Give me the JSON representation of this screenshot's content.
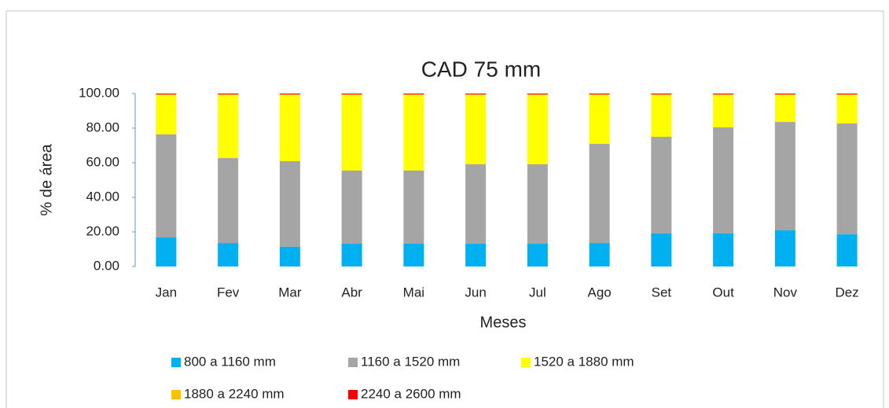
{
  "chart_data": {
    "type": "stacked_bar",
    "title": "CAD 75 mm",
    "x_label": "Meses",
    "y_label": "% de área",
    "categories": [
      "Jan",
      "Fev",
      "Mar",
      "Abr",
      "Mai",
      "Jun",
      "Jul",
      "Ago",
      "Set",
      "Out",
      "Nov",
      "Dez"
    ],
    "series": [
      {
        "name": "800 a 1160 mm",
        "color": "#00b0f0",
        "values": [
          16.8,
          13.6,
          11.4,
          13.2,
          13.2,
          13.2,
          13.2,
          13.6,
          19.1,
          19.1,
          20.9,
          18.6
        ]
      },
      {
        "name": "1160 a 1520 mm",
        "color": "#a5a5a5",
        "values": [
          59.6,
          49.1,
          49.5,
          42.3,
          42.3,
          45.9,
          45.9,
          57.3,
          55.9,
          61.4,
          62.7,
          64.1
        ]
      },
      {
        "name": "1520 a 1880 mm",
        "color": "#ffff00",
        "values": [
          22.8,
          36.5,
          38.3,
          43.7,
          43.7,
          40.1,
          40.1,
          28.3,
          24.2,
          18.7,
          15.6,
          16.5
        ]
      },
      {
        "name": "1880 a 2240 mm",
        "color": "#ffc000",
        "values": [
          0.3,
          0.3,
          0.3,
          0.3,
          0.3,
          0.3,
          0.3,
          0.3,
          0.3,
          0.3,
          0.3,
          0.3
        ]
      },
      {
        "name": "2240 a 2600 mm",
        "color": "#ff0000",
        "values": [
          0.5,
          0.5,
          0.5,
          0.5,
          0.5,
          0.5,
          0.5,
          0.5,
          0.5,
          0.5,
          0.5,
          0.5
        ]
      }
    ],
    "ylim": [
      0,
      100
    ],
    "yticks": [
      {
        "value": 0,
        "label": "0.00"
      },
      {
        "value": 20,
        "label": "20.00"
      },
      {
        "value": 40,
        "label": "40.00"
      },
      {
        "value": 60,
        "label": "60.00"
      },
      {
        "value": 80,
        "label": "80.00"
      },
      {
        "value": 100,
        "label": "100.00"
      }
    ],
    "grid": false
  }
}
